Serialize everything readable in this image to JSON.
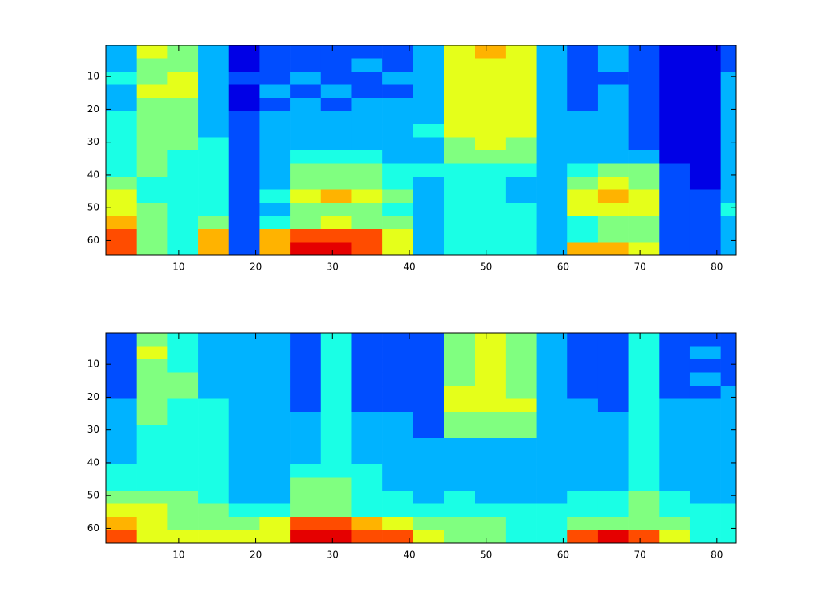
{
  "chart_data": [
    {
      "type": "heatmap",
      "colormap": "jet",
      "clim": [
        0,
        10
      ],
      "xlim": [
        0.5,
        82.5
      ],
      "ylim": [
        0.5,
        64.5
      ],
      "y_reversed": true,
      "xticks": [
        10,
        20,
        30,
        40,
        50,
        60,
        70,
        80
      ],
      "yticks": [
        10,
        20,
        30,
        40,
        50,
        60
      ],
      "xbins": [
        0.5,
        4.5,
        8.5,
        12.5,
        16.5,
        20.5,
        24.5,
        28.5,
        32.5,
        36.5,
        40.5,
        44.5,
        48.5,
        52.5,
        56.5,
        60.5,
        64.5,
        68.5,
        72.5,
        76.5,
        80.5,
        82.5
      ],
      "ybins": [
        0.5,
        4.5,
        8.5,
        12.5,
        16.5,
        20.5,
        24.5,
        28.5,
        32.5,
        36.5,
        40.5,
        44.5,
        48.5,
        52.5,
        56.5,
        60.5,
        64.5
      ],
      "z": [
        [
          3,
          6,
          5,
          3,
          1,
          2,
          2,
          2,
          2,
          2,
          3,
          6,
          7,
          6,
          3,
          2,
          3,
          2,
          1,
          1,
          2
        ],
        [
          3,
          5,
          5,
          3,
          1,
          2,
          2,
          2,
          3,
          2,
          3,
          6,
          6,
          6,
          3,
          2,
          3,
          2,
          1,
          1,
          2
        ],
        [
          4,
          5,
          6,
          3,
          2,
          2,
          3,
          2,
          2,
          3,
          3,
          6,
          6,
          6,
          3,
          2,
          2,
          2,
          1,
          1,
          3
        ],
        [
          3,
          6,
          6,
          3,
          1,
          3,
          2,
          3,
          2,
          2,
          3,
          6,
          6,
          6,
          3,
          2,
          3,
          2,
          1,
          1,
          3
        ],
        [
          3,
          5,
          5,
          3,
          1,
          2,
          3,
          2,
          3,
          3,
          3,
          6,
          6,
          6,
          3,
          2,
          3,
          2,
          1,
          1,
          3
        ],
        [
          4,
          5,
          5,
          3,
          2,
          3,
          3,
          3,
          3,
          3,
          3,
          6,
          6,
          6,
          3,
          3,
          3,
          2,
          1,
          1,
          3
        ],
        [
          4,
          5,
          5,
          3,
          2,
          3,
          3,
          3,
          3,
          3,
          4,
          6,
          6,
          6,
          3,
          3,
          3,
          2,
          1,
          1,
          3
        ],
        [
          4,
          5,
          5,
          4,
          2,
          3,
          3,
          3,
          3,
          3,
          3,
          5,
          6,
          5,
          3,
          3,
          3,
          2,
          1,
          1,
          3
        ],
        [
          4,
          5,
          4,
          4,
          2,
          3,
          4,
          4,
          4,
          3,
          3,
          5,
          5,
          5,
          3,
          3,
          3,
          3,
          1,
          1,
          3
        ],
        [
          4,
          5,
          4,
          4,
          2,
          3,
          5,
          5,
          5,
          4,
          4,
          4,
          4,
          4,
          3,
          4,
          5,
          5,
          2,
          1,
          3
        ],
        [
          5,
          4,
          4,
          4,
          2,
          3,
          5,
          5,
          5,
          4,
          3,
          4,
          4,
          3,
          3,
          5,
          6,
          5,
          2,
          1,
          3
        ],
        [
          6,
          4,
          4,
          4,
          2,
          4,
          6,
          7,
          6,
          5,
          3,
          4,
          4,
          3,
          3,
          6,
          7,
          6,
          2,
          2,
          3
        ],
        [
          6,
          5,
          4,
          4,
          2,
          3,
          5,
          5,
          5,
          4,
          3,
          4,
          4,
          4,
          3,
          6,
          6,
          6,
          2,
          2,
          4
        ],
        [
          7,
          5,
          4,
          5,
          2,
          4,
          5,
          6,
          5,
          5,
          3,
          4,
          4,
          4,
          3,
          4,
          5,
          5,
          2,
          2,
          3
        ],
        [
          8,
          5,
          4,
          7,
          2,
          7,
          8,
          8,
          8,
          6,
          3,
          4,
          4,
          4,
          3,
          4,
          5,
          5,
          2,
          2,
          3
        ],
        [
          8,
          5,
          4,
          7,
          2,
          7,
          9,
          9,
          8,
          6,
          3,
          4,
          4,
          4,
          3,
          7,
          7,
          6,
          2,
          2,
          3
        ]
      ]
    },
    {
      "type": "heatmap",
      "colormap": "jet",
      "clim": [
        0,
        10
      ],
      "xlim": [
        0.5,
        82.5
      ],
      "ylim": [
        0.5,
        64.5
      ],
      "y_reversed": true,
      "xticks": [
        10,
        20,
        30,
        40,
        50,
        60,
        70,
        80
      ],
      "yticks": [
        10,
        20,
        30,
        40,
        50,
        60
      ],
      "xbins": [
        0.5,
        4.5,
        8.5,
        12.5,
        16.5,
        20.5,
        24.5,
        28.5,
        32.5,
        36.5,
        40.5,
        44.5,
        48.5,
        52.5,
        56.5,
        60.5,
        64.5,
        68.5,
        72.5,
        76.5,
        80.5,
        82.5
      ],
      "ybins": [
        0.5,
        4.5,
        8.5,
        12.5,
        16.5,
        20.5,
        24.5,
        28.5,
        32.5,
        36.5,
        40.5,
        44.5,
        48.5,
        52.5,
        56.5,
        60.5,
        64.5
      ],
      "z": [
        [
          2,
          5,
          4,
          3,
          3,
          3,
          2,
          4,
          2,
          2,
          2,
          5,
          6,
          5,
          3,
          2,
          2,
          4,
          2,
          2,
          2
        ],
        [
          2,
          6,
          4,
          3,
          3,
          3,
          2,
          4,
          2,
          2,
          2,
          5,
          6,
          5,
          3,
          2,
          2,
          4,
          2,
          3,
          2
        ],
        [
          2,
          5,
          4,
          3,
          3,
          3,
          2,
          4,
          2,
          2,
          2,
          5,
          6,
          5,
          3,
          2,
          2,
          4,
          2,
          2,
          2
        ],
        [
          2,
          5,
          5,
          3,
          3,
          3,
          2,
          4,
          2,
          2,
          2,
          5,
          6,
          5,
          3,
          2,
          2,
          4,
          2,
          3,
          2
        ],
        [
          2,
          5,
          5,
          3,
          3,
          3,
          2,
          4,
          2,
          2,
          2,
          6,
          6,
          5,
          3,
          2,
          2,
          4,
          2,
          2,
          3
        ],
        [
          3,
          5,
          4,
          4,
          3,
          3,
          2,
          4,
          2,
          2,
          2,
          6,
          6,
          6,
          3,
          3,
          2,
          4,
          3,
          3,
          3
        ],
        [
          3,
          5,
          4,
          4,
          3,
          3,
          3,
          4,
          3,
          3,
          2,
          5,
          5,
          5,
          3,
          3,
          3,
          4,
          3,
          3,
          3
        ],
        [
          3,
          4,
          4,
          4,
          3,
          3,
          3,
          4,
          3,
          3,
          2,
          5,
          5,
          5,
          3,
          3,
          3,
          4,
          3,
          3,
          3
        ],
        [
          3,
          4,
          4,
          4,
          3,
          3,
          3,
          4,
          3,
          3,
          3,
          3,
          3,
          3,
          3,
          3,
          3,
          4,
          3,
          3,
          3
        ],
        [
          3,
          4,
          4,
          4,
          3,
          3,
          3,
          4,
          3,
          3,
          3,
          3,
          3,
          3,
          3,
          3,
          3,
          4,
          3,
          3,
          3
        ],
        [
          4,
          4,
          4,
          4,
          3,
          3,
          4,
          4,
          4,
          3,
          3,
          3,
          3,
          3,
          3,
          3,
          3,
          4,
          3,
          3,
          3
        ],
        [
          4,
          4,
          4,
          4,
          3,
          3,
          5,
          5,
          4,
          3,
          3,
          3,
          3,
          3,
          3,
          3,
          3,
          4,
          3,
          3,
          3
        ],
        [
          5,
          5,
          5,
          4,
          3,
          3,
          5,
          5,
          4,
          4,
          3,
          4,
          3,
          3,
          3,
          4,
          4,
          5,
          4,
          3,
          3
        ],
        [
          6,
          6,
          5,
          5,
          4,
          4,
          5,
          5,
          4,
          4,
          4,
          4,
          4,
          4,
          4,
          4,
          4,
          5,
          4,
          4,
          4
        ],
        [
          7,
          6,
          5,
          5,
          5,
          6,
          8,
          8,
          7,
          6,
          5,
          5,
          5,
          4,
          4,
          5,
          5,
          5,
          5,
          4,
          4
        ],
        [
          8,
          6,
          6,
          6,
          6,
          6,
          9,
          9,
          8,
          8,
          6,
          5,
          5,
          4,
          4,
          8,
          9,
          8,
          6,
          4,
          4
        ]
      ]
    }
  ]
}
